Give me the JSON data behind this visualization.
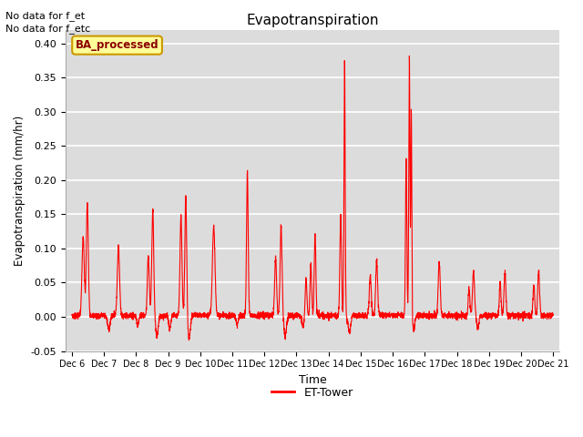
{
  "title": "Evapotranspiration",
  "xlabel": "Time",
  "ylabel": "Evapotranspiration (mm/hr)",
  "ylim": [
    -0.05,
    0.42
  ],
  "yticks": [
    -0.05,
    0.0,
    0.05,
    0.1,
    0.15,
    0.2,
    0.25,
    0.3,
    0.35,
    0.4
  ],
  "line_color": "#ff0000",
  "line_width": 0.8,
  "fig_bg_color": "#ffffff",
  "plot_bg_color": "#dcdcdc",
  "legend_label": "ET-Tower",
  "legend_color": "#ff0000",
  "annotation1": "No data for f_et",
  "annotation2": "No data for f_etc",
  "box_label": "BA_processed",
  "box_bg": "#ffff99",
  "box_border": "#cc9900",
  "n_days": 15,
  "n_points_per_day": 240
}
